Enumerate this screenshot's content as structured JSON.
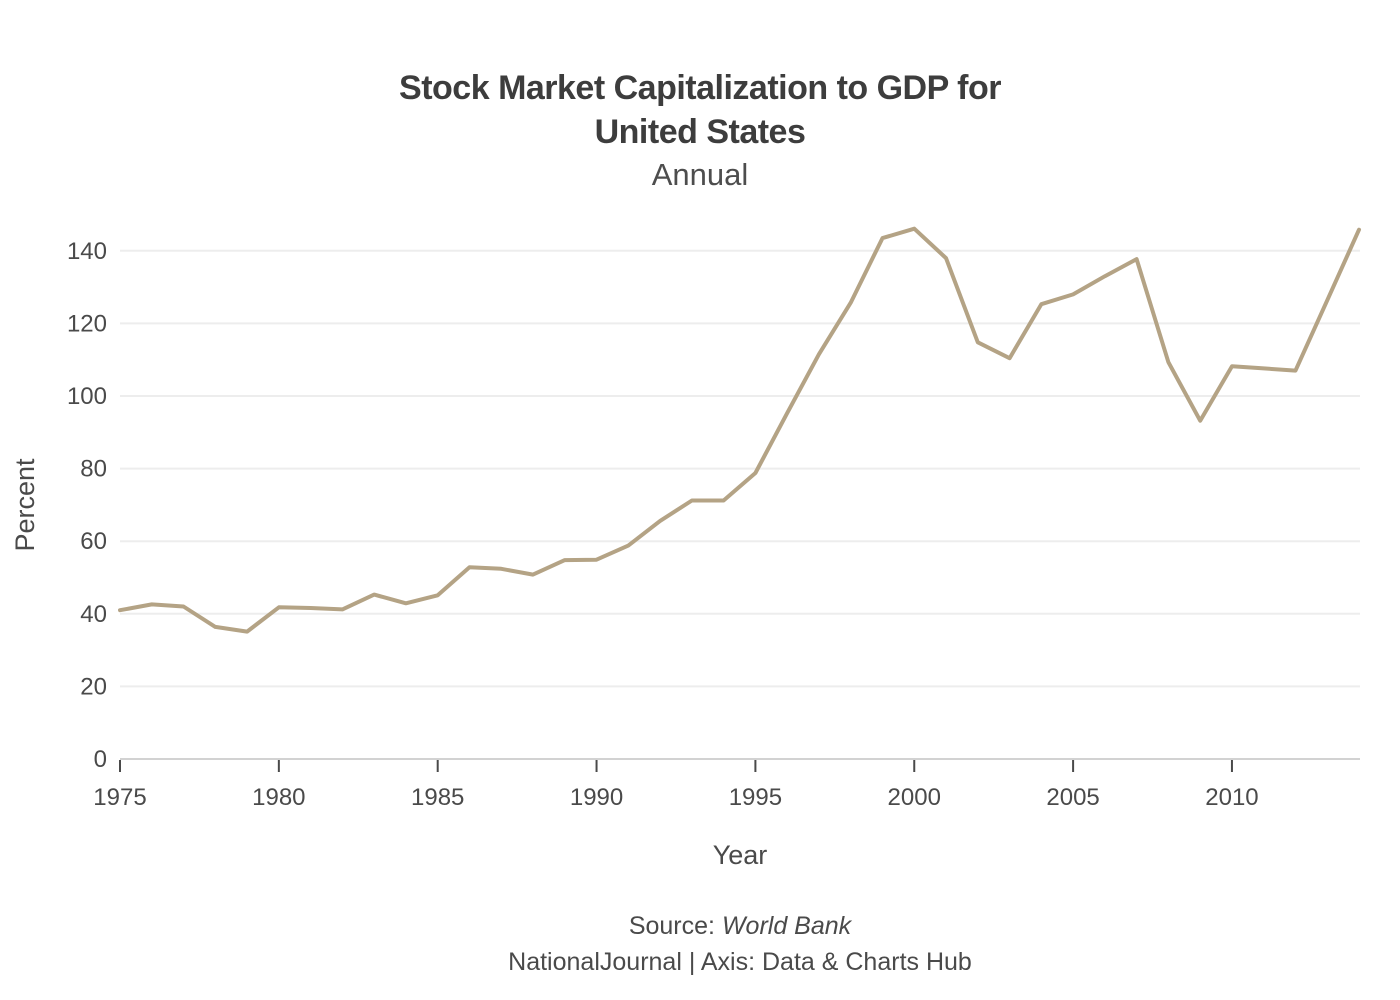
{
  "header": {
    "title_line1": "Stock Market Capitalization to GDP for",
    "title_line2": "United States",
    "subtitle": "Annual"
  },
  "footer": {
    "source_prefix": "Source: ",
    "source_name": "World Bank",
    "credit": "NationalJournal | Axis: Data & Charts Hub"
  },
  "chart_data": {
    "type": "line",
    "title": "Stock Market Capitalization to GDP for United States",
    "subtitle": "Annual",
    "xlabel": "Year",
    "ylabel": "Percent",
    "series_name": "Stock Market Capitalization to GDP (Percent)",
    "x": [
      1975,
      1976,
      1977,
      1978,
      1979,
      1980,
      1981,
      1982,
      1983,
      1984,
      1985,
      1986,
      1987,
      1988,
      1989,
      1990,
      1991,
      1992,
      1993,
      1994,
      1995,
      1996,
      1997,
      1998,
      1999,
      2000,
      2001,
      2002,
      2003,
      2004,
      2005,
      2006,
      2007,
      2008,
      2009,
      2010,
      2011,
      2012,
      2013,
      2014
    ],
    "values": [
      41.0,
      42.6,
      42.0,
      36.4,
      35.1,
      41.8,
      41.6,
      41.2,
      45.3,
      42.9,
      45.1,
      52.8,
      52.4,
      50.8,
      54.8,
      54.9,
      58.8,
      65.6,
      71.2,
      71.2,
      78.8,
      95.3,
      111.5,
      125.7,
      143.5,
      146.1,
      138.0,
      114.8,
      110.4,
      125.3,
      128.0,
      133.0,
      137.7,
      109.3,
      93.2,
      108.2,
      107.6,
      107.0,
      126.4,
      145.8
    ],
    "xlim": [
      1975,
      2014.2
    ],
    "ylim": [
      0,
      150
    ],
    "yticks": [
      0,
      20,
      40,
      60,
      80,
      100,
      120,
      140
    ],
    "xticks": [
      1975,
      1980,
      1985,
      1990,
      1995,
      2000,
      2005,
      2010
    ],
    "grid": true,
    "legend": false,
    "line_color": "#b4a385",
    "text_color": "#4a4a4a",
    "grid_color": "#ededed",
    "axis_color": "#d2d2d2",
    "title_color": "#3d3d3d"
  }
}
